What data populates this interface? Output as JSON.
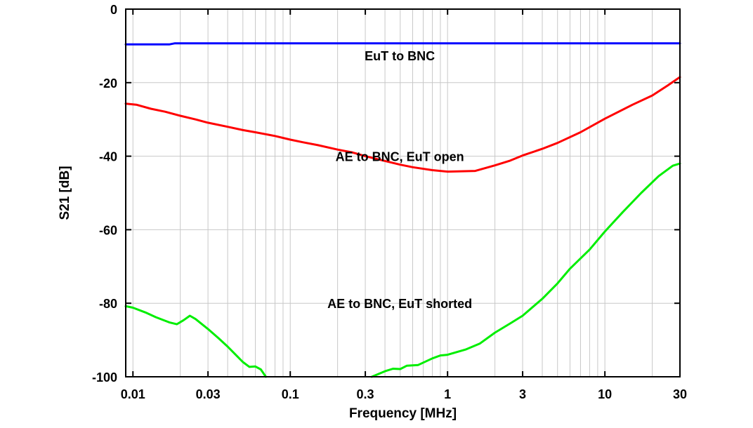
{
  "chart_data": {
    "type": "line",
    "title": "",
    "xlabel": "Frequency [MHz]",
    "ylabel": "S21 [dB]",
    "x_scale": "log",
    "xlim": [
      0.009,
      30
    ],
    "ylim": [
      -100,
      0
    ],
    "grid": true,
    "x_ticks": [
      {
        "value": 0.01,
        "label": "0.01"
      },
      {
        "value": 0.03,
        "label": "0.03"
      },
      {
        "value": 0.1,
        "label": "0.1"
      },
      {
        "value": 0.3,
        "label": "0.3"
      },
      {
        "value": 1,
        "label": "1"
      },
      {
        "value": 3,
        "label": "3"
      },
      {
        "value": 10,
        "label": "10"
      },
      {
        "value": 30,
        "label": "30"
      }
    ],
    "y_ticks": [
      {
        "value": 0,
        "label": "0"
      },
      {
        "value": -20,
        "label": "-20"
      },
      {
        "value": -40,
        "label": "-40"
      },
      {
        "value": -60,
        "label": "-60"
      },
      {
        "value": -80,
        "label": "-80"
      },
      {
        "value": -100,
        "label": "-100"
      }
    ],
    "series": [
      {
        "color": "#0000ff",
        "points": [
          [
            0.009,
            -9.6
          ],
          [
            0.017,
            -9.6
          ],
          [
            0.0185,
            -9.3
          ],
          [
            30,
            -9.3
          ]
        ]
      },
      {
        "color": "#ff0000",
        "points": [
          [
            0.009,
            -25.7
          ],
          [
            0.0105,
            -26.0
          ],
          [
            0.013,
            -27.1
          ],
          [
            0.016,
            -27.9
          ],
          [
            0.02,
            -29.0
          ],
          [
            0.025,
            -30.0
          ],
          [
            0.03,
            -30.9
          ],
          [
            0.04,
            -32.0
          ],
          [
            0.05,
            -32.9
          ],
          [
            0.06,
            -33.5
          ],
          [
            0.08,
            -34.5
          ],
          [
            0.1,
            -35.5
          ],
          [
            0.12,
            -36.2
          ],
          [
            0.15,
            -37.0
          ],
          [
            0.2,
            -38.2
          ],
          [
            0.25,
            -39.0
          ],
          [
            0.3,
            -40.0
          ],
          [
            0.4,
            -41.3
          ],
          [
            0.5,
            -42.3
          ],
          [
            0.6,
            -43.0
          ],
          [
            0.8,
            -43.8
          ],
          [
            1.0,
            -44.2
          ],
          [
            1.5,
            -44.0
          ],
          [
            2.0,
            -42.5
          ],
          [
            2.5,
            -41.2
          ],
          [
            3.0,
            -39.8
          ],
          [
            4.0,
            -38.0
          ],
          [
            5.0,
            -36.4
          ],
          [
            7.0,
            -33.5
          ],
          [
            10.0,
            -29.8
          ],
          [
            15.0,
            -26.0
          ],
          [
            20.0,
            -23.5
          ],
          [
            25.0,
            -20.8
          ],
          [
            30.0,
            -18.5
          ]
        ]
      },
      {
        "color": "#00ee00",
        "points": [
          [
            0.009,
            -80.8
          ],
          [
            0.01,
            -81.2
          ],
          [
            0.012,
            -82.5
          ],
          [
            0.014,
            -83.8
          ],
          [
            0.017,
            -85.2
          ],
          [
            0.019,
            -85.7
          ],
          [
            0.021,
            -84.6
          ],
          [
            0.023,
            -83.4
          ],
          [
            0.025,
            -84.3
          ],
          [
            0.03,
            -87.0
          ],
          [
            0.035,
            -89.5
          ],
          [
            0.04,
            -91.8
          ],
          [
            0.05,
            -96.0
          ],
          [
            0.055,
            -97.3
          ],
          [
            0.06,
            -97.2
          ],
          [
            0.065,
            -98.0
          ],
          [
            0.07,
            -100.0
          ]
        ]
      },
      {
        "color": "#00ee00",
        "points": [
          [
            0.33,
            -100.0
          ],
          [
            0.4,
            -98.5
          ],
          [
            0.45,
            -97.8
          ],
          [
            0.5,
            -97.9
          ],
          [
            0.55,
            -97.0
          ],
          [
            0.65,
            -96.8
          ],
          [
            0.8,
            -95.0
          ],
          [
            0.9,
            -94.2
          ],
          [
            1.0,
            -94.0
          ],
          [
            1.3,
            -92.6
          ],
          [
            1.6,
            -91.0
          ],
          [
            2.0,
            -88.0
          ],
          [
            2.5,
            -85.5
          ],
          [
            3.0,
            -83.4
          ],
          [
            4.0,
            -78.8
          ],
          [
            5.0,
            -74.6
          ],
          [
            6.0,
            -70.6
          ],
          [
            8.0,
            -65.4
          ],
          [
            10.0,
            -60.5
          ],
          [
            13.0,
            -55.2
          ],
          [
            17.0,
            -50.0
          ],
          [
            22.0,
            -45.4
          ],
          [
            27.0,
            -42.6
          ],
          [
            30.0,
            -42.0
          ]
        ]
      }
    ],
    "annotations": [
      {
        "text": "EuT to BNC",
        "x": 1.0,
        "y": -12.8
      },
      {
        "text": "AE to BNC, EuT open",
        "x": 1.0,
        "y": -40.2
      },
      {
        "text": "AE to BNC, EuT shorted",
        "x": 1.0,
        "y": -80.2
      }
    ]
  }
}
